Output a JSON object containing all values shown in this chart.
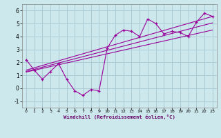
{
  "xlabel": "Windchill (Refroidissement éolien,°C)",
  "bg_color": "#cce8ec",
  "grid_color": "#aaccd4",
  "line_color": "#990099",
  "xlim": [
    -0.5,
    23.5
  ],
  "ylim": [
    -1.5,
    6.5
  ],
  "xticks": [
    0,
    1,
    2,
    3,
    4,
    5,
    6,
    7,
    8,
    9,
    10,
    11,
    12,
    13,
    14,
    15,
    16,
    17,
    18,
    19,
    20,
    21,
    22,
    23
  ],
  "yticks": [
    -1,
    0,
    1,
    2,
    3,
    4,
    5,
    6
  ],
  "scatter_x": [
    0,
    1,
    2,
    3,
    4,
    5,
    6,
    7,
    8,
    9,
    10,
    11,
    12,
    13,
    14,
    15,
    16,
    17,
    18,
    19,
    20,
    21,
    22,
    23
  ],
  "scatter_y": [
    2.2,
    1.4,
    0.7,
    1.3,
    1.9,
    0.7,
    -0.2,
    -0.55,
    -0.1,
    -0.2,
    3.1,
    4.1,
    4.5,
    4.4,
    4.0,
    5.35,
    5.0,
    4.2,
    4.4,
    4.3,
    4.0,
    5.1,
    5.8,
    5.55
  ],
  "line1_x": [
    0,
    23
  ],
  "line1_y": [
    1.4,
    5.55
  ],
  "line2_x": [
    0,
    23
  ],
  "line2_y": [
    1.25,
    4.5
  ],
  "line3_x": [
    0,
    23
  ],
  "line3_y": [
    1.3,
    5.05
  ]
}
